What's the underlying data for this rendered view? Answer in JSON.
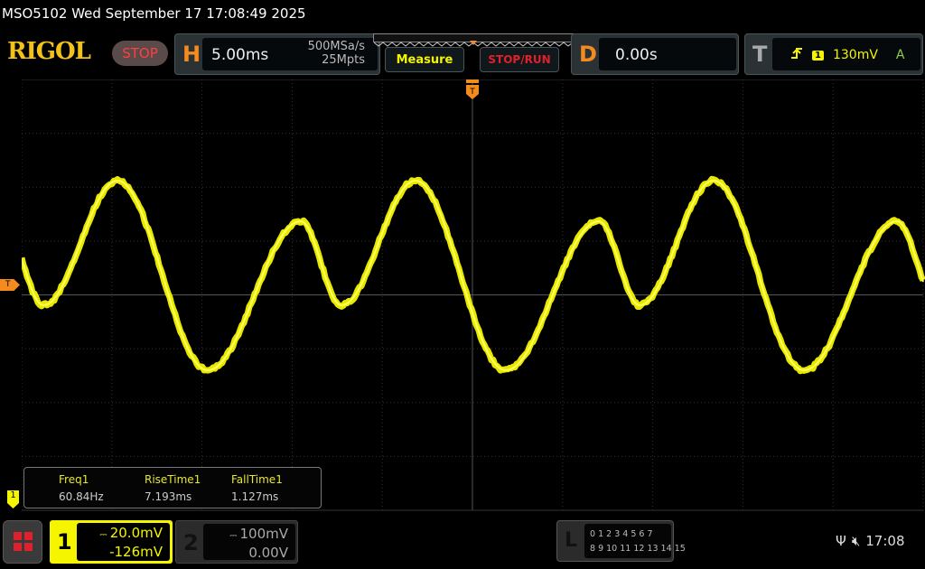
{
  "titlebar": {
    "text": "MSO5102  Wed September 17 17:08:49 2025"
  },
  "brand": {
    "logo": "RIGOL",
    "run_state": "STOP"
  },
  "horizontal": {
    "letter": "H",
    "timebase": "5.00ms",
    "sample_rate": "500MSa/s",
    "memory_depth": "25Mpts"
  },
  "buttons": {
    "measure": "Measure",
    "stop_run": "STOP/RUN"
  },
  "delay": {
    "letter": "D",
    "value": "0.00s"
  },
  "trigger": {
    "letter": "T",
    "slope_icon": "rising-edge-icon",
    "source": "1",
    "level": "130mV",
    "mode": "A"
  },
  "markers": {
    "trigger_position": "T",
    "trigger_level": "T",
    "ch1_ground": "1"
  },
  "measurements": [
    {
      "label": "Freq1",
      "value": "60.84Hz"
    },
    {
      "label": "RiseTime1",
      "value": "7.193ms"
    },
    {
      "label": "FallTime1",
      "value": "1.127ms"
    }
  ],
  "channels": [
    {
      "number": "1",
      "scale": "20.0mV",
      "offset": "-126mV",
      "coupling_icon": "dc-coupling-icon",
      "color": "#f5f500",
      "active": true
    },
    {
      "number": "2",
      "scale": "100mV",
      "offset": "0.00V",
      "coupling_icon": "dc-coupling-icon",
      "color": "#aaaaaa",
      "active": false
    }
  ],
  "logic": {
    "letter": "L",
    "row1": "0 1 2 3  4 5 6 7",
    "row2": "8 9 10 11 12 13 14 15"
  },
  "status": {
    "usb_icon": "usb-icon",
    "sound_icon": "mute-icon",
    "time": "17:08"
  },
  "colors": {
    "trace": "#f5f500",
    "accent": "#f58a1f",
    "stop": "#e0202a"
  }
}
